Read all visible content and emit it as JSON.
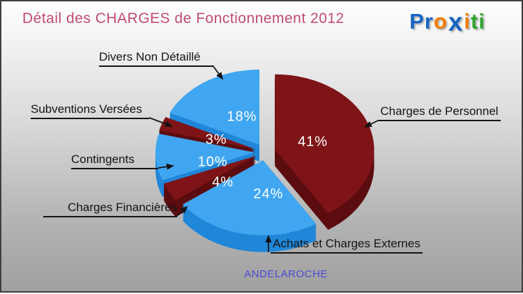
{
  "header": {
    "title": "Détail des CHARGES de Fonctionnement 2012",
    "title_color": "#c14a76"
  },
  "brand": {
    "name": "Proxiti",
    "segments": [
      {
        "text": "Pr",
        "color": "#1565c5"
      },
      {
        "text": "o",
        "color": "#f07d05"
      },
      {
        "text": "x",
        "color": "#1565c5"
      },
      {
        "text": "i",
        "color": "#f07d05"
      },
      {
        "text": "t",
        "color": "#2fa32f"
      },
      {
        "text": "i",
        "color": "#2fa32f"
      }
    ]
  },
  "footer": {
    "commune": "ANDELAROCHE",
    "color": "#4a4ad6"
  },
  "chart_data": {
    "type": "pie",
    "title": "Détail des CHARGES de Fonctionnement 2012",
    "unit": "%",
    "direction": "clockwise",
    "start_angle_deg": 0,
    "effect": "3d-exploded-pie",
    "legend_position": "callout-labels",
    "palette": {
      "blue": "#41a6f1",
      "dark_red": "#7e1417"
    },
    "slices": [
      {
        "label": "Charges de Personnel",
        "value": 41,
        "color": "#7e1417",
        "wall_color": "#5c0d10"
      },
      {
        "label": "Achats et Charges Externes",
        "value": 24,
        "color": "#41a6f1",
        "wall_color": "#2187d8"
      },
      {
        "label": "Charges Financières",
        "value": 4,
        "color": "#7e1417",
        "wall_color": "#5c0d10"
      },
      {
        "label": "Contingents",
        "value": 10,
        "color": "#41a6f1",
        "wall_color": "#2187d8"
      },
      {
        "label": "Subventions Versées",
        "value": 3,
        "color": "#7e1417",
        "wall_color": "#5c0d10"
      },
      {
        "label": "Divers Non Détaillé",
        "value": 18,
        "color": "#41a6f1",
        "wall_color": "#2187d8"
      }
    ]
  }
}
